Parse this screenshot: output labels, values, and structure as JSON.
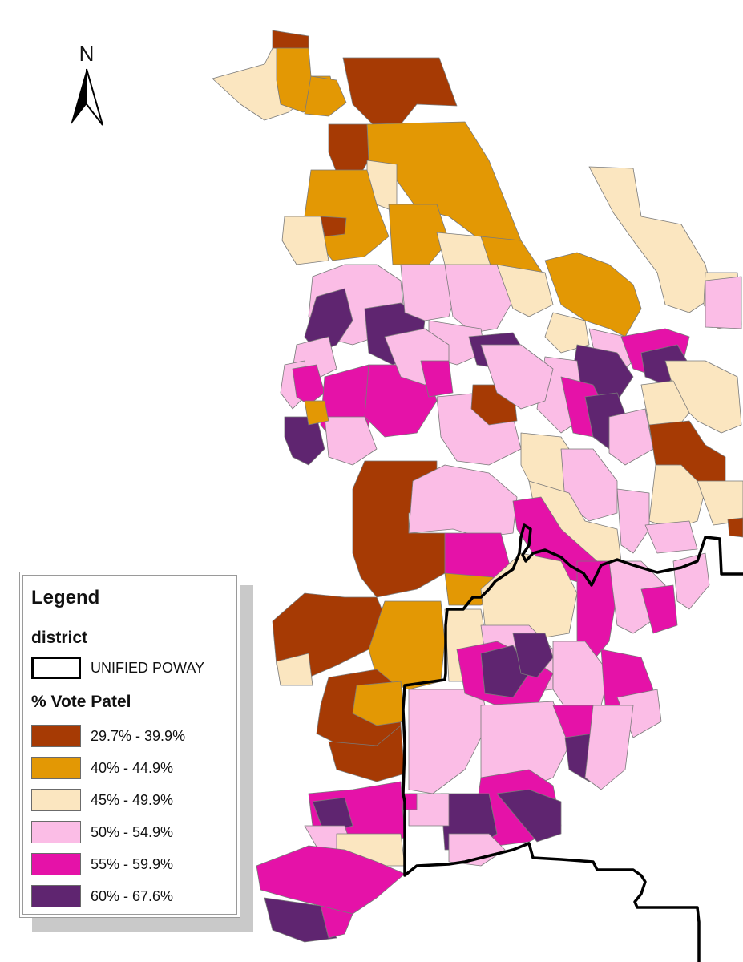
{
  "north_arrow": {
    "label": "N",
    "icon": "north-arrow-icon"
  },
  "legend": {
    "title": "Legend",
    "district_title": "district",
    "district_item": {
      "label": "UNIFIED POWAY",
      "style": "outline",
      "color": "#000000"
    },
    "vote_title": "% Vote Patel",
    "classes": [
      {
        "label": "29.7% - 39.9%",
        "color": "#a63a04"
      },
      {
        "label": "40% - 44.9%",
        "color": "#e39804"
      },
      {
        "label": "45% - 49.9%",
        "color": "#fbe6c0"
      },
      {
        "label": "50% - 54.9%",
        "color": "#fbbde6"
      },
      {
        "label": "55% - 59.9%",
        "color": "#e512a8"
      },
      {
        "label": "60% - 67.6%",
        "color": "#5f2570"
      }
    ]
  },
  "map": {
    "boundary_color": "#000000",
    "precinct_border_color": "#7a7a7a"
  }
}
